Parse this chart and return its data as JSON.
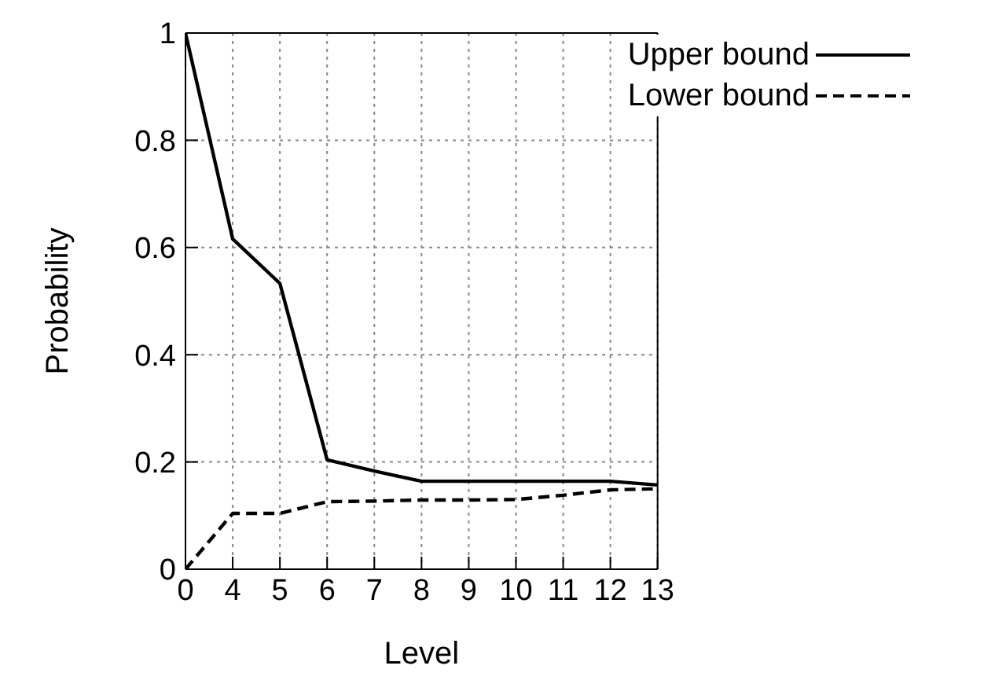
{
  "chart_data": {
    "type": "line",
    "xlabel": "Level",
    "ylabel": "Probability",
    "categories": [
      "0",
      "4",
      "5",
      "6",
      "7",
      "8",
      "9",
      "10",
      "11",
      "12",
      "13"
    ],
    "series": [
      {
        "name": "Upper bound",
        "color": "#000000",
        "line_style": "solid",
        "values": [
          1,
          0.616,
          0.533,
          0.204,
          0.183,
          0.164,
          0.164,
          0.164,
          0.164,
          0.164,
          0.157
        ]
      },
      {
        "name": "Lower bound",
        "color": "#000000",
        "line_style": "dashed",
        "values": [
          0,
          0.104,
          0.104,
          0.126,
          0.127,
          0.129,
          0.129,
          0.13,
          0.138,
          0.148,
          0.15
        ]
      }
    ],
    "ylim": [
      0,
      1
    ],
    "yticks": [
      0,
      0.2,
      0.4,
      0.6,
      0.8,
      1
    ],
    "grid": true,
    "legend": "top right",
    "marker": "none"
  }
}
